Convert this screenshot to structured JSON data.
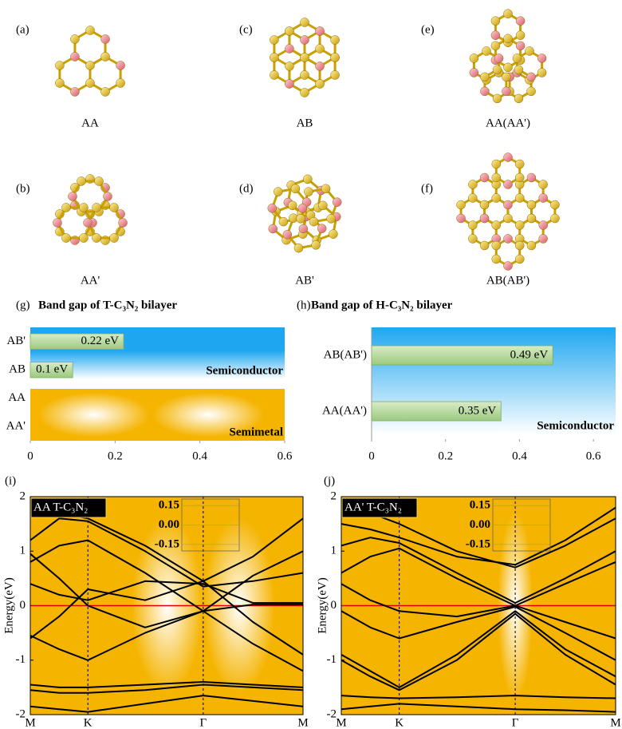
{
  "structures": [
    {
      "panel": "(a)",
      "label": "AA"
    },
    {
      "panel": "(b)",
      "label": "AA'"
    },
    {
      "panel": "(c)",
      "label": "AB"
    },
    {
      "panel": "(d)",
      "label": "AB'"
    },
    {
      "panel": "(e)",
      "label": "AA(AA')"
    },
    {
      "panel": "(f)",
      "label": "AB(AB')"
    }
  ],
  "chart_data": [
    {
      "type": "bar",
      "panel": "(g)",
      "title": "Band gap of T-C₃N₂ bilayer",
      "categories": [
        "AB'",
        "AB",
        "AA",
        "AA'"
      ],
      "values": [
        0.22,
        0.1,
        null,
        null
      ],
      "value_labels": [
        "0.22 eV",
        "0.1 eV",
        null,
        null
      ],
      "color": "#b5d89a",
      "xlim": [
        0,
        0.6
      ],
      "xticks": [
        0,
        0.2,
        0.4,
        0.6
      ],
      "regions": [
        {
          "label": "Semiconductor",
          "categories": [
            "AB'",
            "AB"
          ],
          "color": "#1ea7f0"
        },
        {
          "label": "Semimetal",
          "categories": [
            "AA",
            "AA'"
          ],
          "color": "#f5b400"
        }
      ]
    },
    {
      "type": "bar",
      "panel": "(h)",
      "title": "Band gap of H-C₃N₂ bilayer",
      "categories": [
        "AB(AB')",
        "AA(AA')"
      ],
      "values": [
        0.49,
        0.35
      ],
      "value_labels": [
        "0.49 eV",
        "0.35 eV"
      ],
      "color": "#b5d89a",
      "xlim": [
        0,
        0.66
      ],
      "xticks": [
        0,
        0.2,
        0.4,
        0.6
      ],
      "regions": [
        {
          "label": "Semiconductor",
          "categories": [
            "AB(AB')",
            "AA(AA')"
          ],
          "color": "#1ea7f0"
        }
      ]
    },
    {
      "type": "line",
      "panel": "(i)",
      "annotation": "AA T-C₃N₂",
      "ylabel": "Energy(eV)",
      "x": [
        0,
        0.289,
        0.577,
        1.15,
        1.732,
        2.23,
        2.732
      ],
      "xlim": [
        0,
        2.732
      ],
      "ylim": [
        -2,
        2
      ],
      "xticks": [
        {
          "value": 0,
          "label": "M"
        },
        {
          "value": 0.577,
          "label": "K"
        },
        {
          "value": 1.732,
          "label": "Γ"
        },
        {
          "value": 2.732,
          "label": "M"
        }
      ],
      "yticks": [
        2,
        1,
        0,
        -1,
        -2
      ],
      "reference_line": {
        "y": 0,
        "color": "#e00000"
      },
      "inset": {
        "ylim": [
          -0.2,
          0.2
        ],
        "yticks": [
          0.15,
          {
            "value": 0,
            "label": "0.00"
          },
          -0.15
        ]
      },
      "series": [
        {
          "color": "#000000",
          "values": [
            1.85,
            1.7,
            1.6,
            1.1,
            0.45,
            0.9,
            1.6
          ]
        },
        {
          "color": "#000000",
          "values": [
            1.2,
            1.6,
            1.55,
            1.0,
            0.35,
            0.45,
            0.6
          ]
        },
        {
          "color": "#000000",
          "values": [
            0.8,
            1.1,
            1.2,
            0.6,
            -0.1,
            0.55,
            1.0
          ]
        },
        {
          "color": "#000000",
          "values": [
            0.4,
            0.2,
            0.1,
            0.45,
            0.4,
            0.05,
            0.05
          ]
        },
        {
          "color": "#000000",
          "values": [
            0.95,
            0.5,
            0.0,
            -0.4,
            -0.1,
            0.02,
            0.02
          ]
        },
        {
          "color": "#000000",
          "values": [
            -0.55,
            -0.8,
            -1.0,
            -0.5,
            -0.1,
            -0.7,
            -1.2
          ]
        },
        {
          "color": "#000000",
          "values": [
            -0.6,
            -0.2,
            0.3,
            0.1,
            0.45,
            -0.3,
            -0.9
          ]
        },
        {
          "color": "#000000",
          "values": [
            -1.45,
            -1.5,
            -1.5,
            -1.45,
            -1.4,
            -1.45,
            -1.5
          ]
        },
        {
          "color": "#000000",
          "values": [
            -1.55,
            -1.6,
            -1.6,
            -1.55,
            -1.45,
            -1.5,
            -1.55
          ]
        },
        {
          "color": "#000000",
          "values": [
            -1.85,
            -1.9,
            -1.95,
            -1.8,
            -1.65,
            -1.75,
            -1.85
          ]
        }
      ]
    },
    {
      "type": "line",
      "panel": "(j)",
      "annotation": "AA' T-C₃N₂",
      "ylabel": "Energy(eV)",
      "x": [
        0,
        0.289,
        0.577,
        1.15,
        1.732,
        2.23,
        2.732
      ],
      "xlim": [
        0,
        2.732
      ],
      "ylim": [
        -2,
        2
      ],
      "xticks": [
        {
          "value": 0,
          "label": "M"
        },
        {
          "value": 0.577,
          "label": "K"
        },
        {
          "value": 1.732,
          "label": "Γ"
        },
        {
          "value": 2.732,
          "label": "M"
        }
      ],
      "yticks": [
        2,
        1,
        0,
        -1,
        -2
      ],
      "reference_line": {
        "y": 0,
        "color": "#e00000"
      },
      "inset": {
        "ylim": [
          -0.2,
          0.2
        ],
        "yticks": [
          0.15,
          {
            "value": 0,
            "label": "0.00"
          },
          -0.15
        ]
      },
      "series": [
        {
          "color": "#000000",
          "values": [
            1.9,
            1.7,
            1.5,
            1.0,
            0.7,
            1.1,
            1.6
          ]
        },
        {
          "color": "#000000",
          "values": [
            1.5,
            1.4,
            1.25,
            0.9,
            0.75,
            1.2,
            1.8
          ]
        },
        {
          "color": "#000000",
          "values": [
            1.1,
            1.25,
            1.15,
            0.6,
            0.05,
            0.5,
            1.0
          ]
        },
        {
          "color": "#000000",
          "values": [
            0.6,
            0.9,
            1.05,
            0.5,
            0.0,
            0.4,
            0.8
          ]
        },
        {
          "color": "#000000",
          "values": [
            0.4,
            0.1,
            -0.1,
            -0.2,
            0.0,
            -0.3,
            -0.6
          ]
        },
        {
          "color": "#000000",
          "values": [
            -0.1,
            -0.4,
            -0.6,
            -0.3,
            -0.02,
            -0.5,
            -1.0
          ]
        },
        {
          "color": "#000000",
          "values": [
            -0.9,
            -1.2,
            -1.5,
            -0.9,
            -0.1,
            -0.8,
            -1.3
          ]
        },
        {
          "color": "#000000",
          "values": [
            -1.0,
            -1.3,
            -1.55,
            -1.0,
            -0.15,
            -0.9,
            -1.45
          ]
        },
        {
          "color": "#000000",
          "values": [
            -1.65,
            -1.68,
            -1.7,
            -1.68,
            -1.65,
            -1.68,
            -1.7
          ]
        },
        {
          "color": "#000000",
          "values": [
            -1.9,
            -1.85,
            -1.8,
            -1.85,
            -1.9,
            -1.92,
            -1.95
          ]
        }
      ]
    }
  ]
}
